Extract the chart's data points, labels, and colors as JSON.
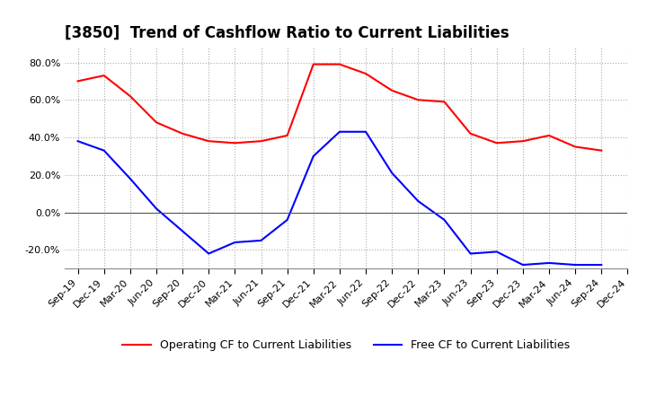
{
  "title": "[3850]  Trend of Cashflow Ratio to Current Liabilities",
  "x_labels": [
    "Sep-19",
    "Dec-19",
    "Mar-20",
    "Jun-20",
    "Sep-20",
    "Dec-20",
    "Mar-21",
    "Jun-21",
    "Sep-21",
    "Dec-21",
    "Mar-22",
    "Jun-22",
    "Sep-22",
    "Dec-22",
    "Mar-23",
    "Jun-23",
    "Sep-23",
    "Dec-23",
    "Mar-24",
    "Jun-24",
    "Sep-24",
    "Dec-24"
  ],
  "data_x_indices": [
    0,
    1,
    2,
    3,
    4,
    5,
    6,
    7,
    8,
    9,
    10,
    11,
    12,
    13,
    14,
    15,
    16,
    17,
    18,
    19,
    20
  ],
  "operating_cf": [
    0.7,
    0.73,
    0.62,
    0.48,
    0.42,
    0.38,
    0.37,
    0.38,
    0.41,
    0.79,
    0.79,
    0.74,
    0.65,
    0.6,
    0.59,
    0.42,
    0.37,
    0.38,
    0.41,
    0.35,
    0.33
  ],
  "free_cf": [
    0.38,
    0.33,
    0.18,
    0.02,
    -0.1,
    -0.22,
    -0.16,
    -0.15,
    -0.04,
    0.3,
    0.43,
    0.43,
    0.21,
    0.06,
    -0.04,
    -0.22,
    -0.21,
    -0.28,
    -0.27,
    -0.28,
    -0.28
  ],
  "operating_color": "#ff0000",
  "free_color": "#0000ff",
  "ylim": [
    -0.3,
    0.88
  ],
  "yticks": [
    -0.2,
    0.0,
    0.2,
    0.4,
    0.6,
    0.8
  ],
  "background_color": "#ffffff",
  "grid_color": "#aaaaaa",
  "title_fontsize": 12,
  "legend_labels": [
    "Operating CF to Current Liabilities",
    "Free CF to Current Liabilities"
  ]
}
